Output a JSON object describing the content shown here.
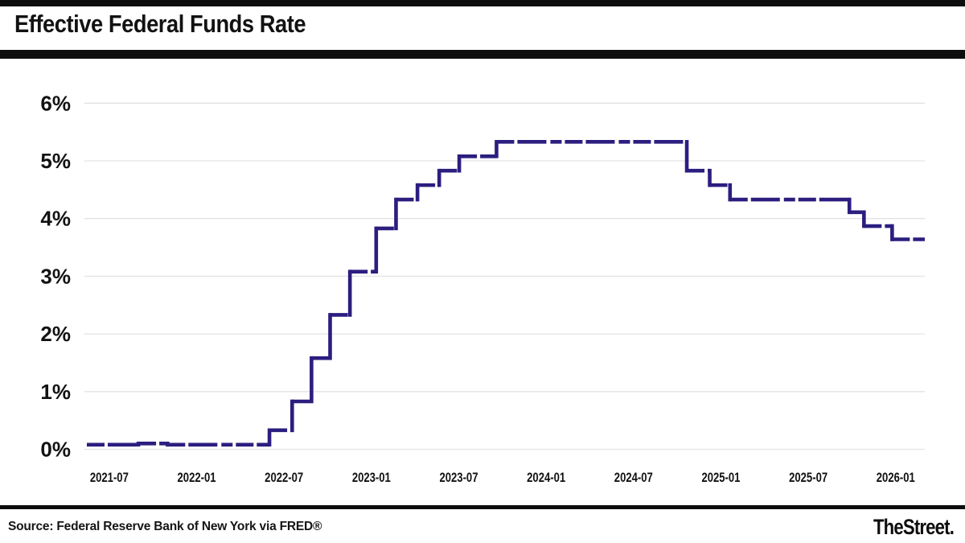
{
  "header": {
    "title": "Effective Federal Funds Rate"
  },
  "footer": {
    "source": "Source: Federal Reserve Bank of New York via FRED®",
    "brand": "TheStreet."
  },
  "colors": {
    "line": "#2b1e7f",
    "grid": "#e3e3e3",
    "bars": "#0d0d0d",
    "text": "#121212"
  },
  "chart_data": {
    "type": "line",
    "subtype": "step",
    "title": "Effective Federal Funds Rate",
    "xlabel": "",
    "ylabel": "",
    "legend": "none",
    "grid": "horizontal",
    "line_color": "#2b1e7f",
    "y_axis": {
      "range": [
        0,
        6
      ],
      "ticks": [
        0,
        1,
        2,
        3,
        4,
        5,
        6
      ],
      "suffix": "%"
    },
    "x_axis": {
      "range": [
        "2021-05-10",
        "2026-03-01"
      ],
      "ticks": [
        "2021-07",
        "2022-01",
        "2022-07",
        "2023-01",
        "2023-07",
        "2024-01",
        "2024-07",
        "2025-01",
        "2025-07",
        "2026-01"
      ]
    },
    "points": [
      {
        "date": "2021-05-15",
        "value": 0.08
      },
      {
        "date": "2021-09-01",
        "value": 0.1
      },
      {
        "date": "2021-11-01",
        "value": 0.08
      },
      {
        "date": "2022-06-01",
        "value": 0.33
      },
      {
        "date": "2022-07-18",
        "value": 0.83
      },
      {
        "date": "2022-08-28",
        "value": 1.58
      },
      {
        "date": "2022-10-06",
        "value": 2.33
      },
      {
        "date": "2022-11-17",
        "value": 3.08
      },
      {
        "date": "2023-01-11",
        "value": 3.83
      },
      {
        "date": "2023-02-22",
        "value": 4.33
      },
      {
        "date": "2023-04-06",
        "value": 4.58
      },
      {
        "date": "2023-05-21",
        "value": 4.83
      },
      {
        "date": "2023-07-02",
        "value": 5.08
      },
      {
        "date": "2023-09-19",
        "value": 5.33
      },
      {
        "date": "2024-10-21",
        "value": 4.83
      },
      {
        "date": "2024-12-08",
        "value": 4.58
      },
      {
        "date": "2025-01-20",
        "value": 4.33
      },
      {
        "date": "2025-09-26",
        "value": 4.11
      },
      {
        "date": "2025-10-26",
        "value": 3.87
      },
      {
        "date": "2025-12-24",
        "value": 3.64
      },
      {
        "date": "2026-03-01",
        "value": 3.64
      }
    ]
  }
}
